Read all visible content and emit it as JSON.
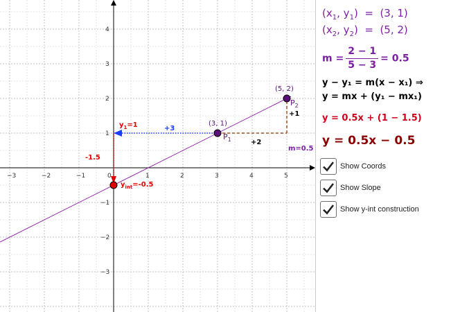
{
  "graph": {
    "x_ticks": [
      "−3",
      "−2",
      "−1",
      "0",
      "1",
      "2",
      "3",
      "4",
      "5"
    ],
    "y_ticks_pos": [
      "4",
      "3",
      "2",
      "1"
    ],
    "y_ticks_neg": [
      "−1",
      "−2",
      "−3"
    ],
    "points": {
      "p1": {
        "x": 3,
        "y": 1,
        "coord_label": "(3, 1)",
        "name": "P",
        "sub": "1"
      },
      "p2": {
        "x": 5,
        "y": 2,
        "coord_label": "(5, 2)",
        "name": "P",
        "sub": "2"
      },
      "yint": {
        "x": 0,
        "y": -0.5,
        "name": "y",
        "sub": "int",
        "suffix": "=-0.5"
      }
    },
    "labels": {
      "y1_name": "y",
      "y1_sub": "1",
      "y1_suffix": "=1",
      "plus3": "+3",
      "minus15": "-1.5",
      "rise": "+1",
      "run": "+2",
      "slope": "m=0.5"
    },
    "colors": {
      "line": "#8e24aa",
      "point": "#5b0f7a",
      "red": "#e00000",
      "blue": "#1a3cff",
      "slope": "#a0522d"
    }
  },
  "algebra": {
    "coord1": {
      "x": "x",
      "xsub": "1",
      "y": "y",
      "ysub": "1",
      "value": "(3, 1)"
    },
    "coord2": {
      "x": "x",
      "xsub": "2",
      "y": "y",
      "ysub": "2",
      "value": "(5, 2)"
    },
    "slope_eq": {
      "lhs": "m =",
      "num": "2 − 1",
      "den": "5 − 3",
      "rhs": "= 0.5"
    },
    "formula1": "y − y₁ = m(x − x₁) ⇒",
    "formula2": "y = mx + (y₁ − mx₁)",
    "equation_sub": "y = 0.5x + (1 − 1.5)",
    "equation_final": "y = 0.5x − 0.5"
  },
  "checkboxes": [
    {
      "label": "Show Coords",
      "checked": true
    },
    {
      "label": "Show Slope",
      "checked": true
    },
    {
      "label": "Show y-int construction",
      "checked": true
    }
  ]
}
